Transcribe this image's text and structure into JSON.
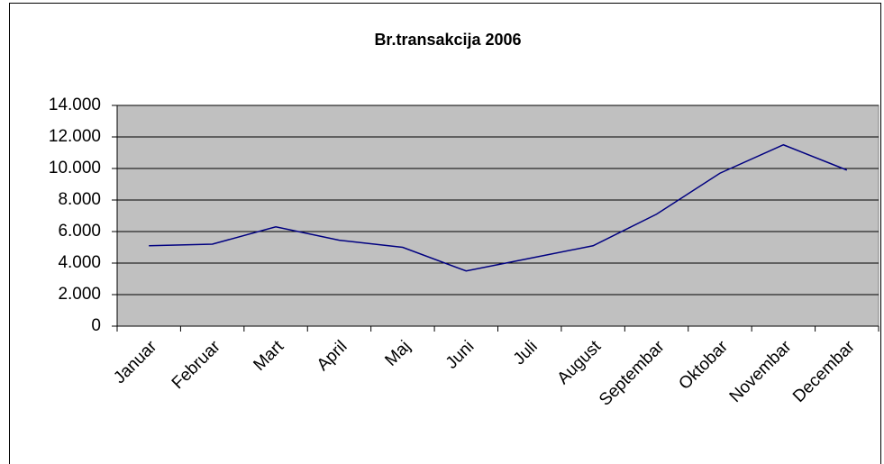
{
  "chart_data": {
    "type": "line",
    "title": "Br.transakcija 2006",
    "categories": [
      "Januar",
      "Februar",
      "Mart",
      "April",
      "Maj",
      "Juni",
      "Juli",
      "August",
      "Septembar",
      "Oktobar",
      "Novembar",
      "Decembar"
    ],
    "series": [
      {
        "name": "Br.transakcija 2006",
        "color": "#000080",
        "values": [
          5100,
          5200,
          6300,
          5450,
          5000,
          3500,
          4300,
          5100,
          7100,
          9700,
          11500,
          9900
        ]
      }
    ],
    "ylim": [
      0,
      14000
    ],
    "yticks": [
      0,
      {
        "value": 2000,
        "label": "2.000"
      },
      {
        "value": 4000,
        "label": "4.000"
      },
      {
        "value": 6000,
        "label": "6.000"
      },
      {
        "value": 8000,
        "label": "8.000"
      },
      {
        "value": 10000,
        "label": "10.000"
      },
      {
        "value": 12000,
        "label": "12.000"
      },
      {
        "value": 14000,
        "label": "14.000"
      }
    ],
    "grid": true,
    "plot_background": "#c0c0c0"
  }
}
